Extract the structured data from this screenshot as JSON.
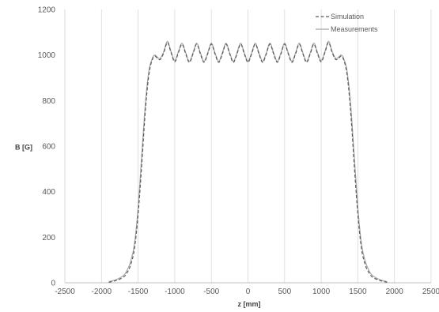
{
  "chart_data": {
    "type": "line",
    "title": "",
    "xlabel": "z [mm]",
    "ylabel": "B [G]",
    "xlim": [
      -2500,
      2500
    ],
    "ylim": [
      0,
      1200
    ],
    "xticks": [
      -2500,
      -2000,
      -1500,
      -1000,
      -500,
      0,
      500,
      1000,
      1500,
      2000,
      2500
    ],
    "yticks": [
      0,
      200,
      400,
      600,
      800,
      1000,
      1200
    ],
    "xtick_labels": [
      "-2500",
      "-2000",
      "-1500",
      "-1000",
      "-500",
      "0",
      "500",
      "1000",
      "1500",
      "2000",
      "2500"
    ],
    "ytick_labels": [
      "0",
      "200",
      "400",
      "600",
      "800",
      "1000",
      "1200"
    ],
    "grid": "vertical",
    "legend_position": "top-right",
    "series": [
      {
        "name": "Simulation",
        "style": "dashed",
        "color": "#595959",
        "x": [
          -1900,
          -1800,
          -1700,
          -1650,
          -1600,
          -1550,
          -1500,
          -1450,
          -1400,
          -1350,
          -1300,
          -1270,
          -1250,
          -1200,
          -1150,
          -1100,
          -1050,
          -1000,
          -950,
          -900,
          -850,
          -800,
          -750,
          -700,
          -650,
          -600,
          -550,
          -500,
          -450,
          -400,
          -350,
          -300,
          -250,
          -200,
          -150,
          -100,
          -50,
          0,
          50,
          100,
          150,
          200,
          250,
          300,
          350,
          400,
          450,
          500,
          550,
          600,
          650,
          700,
          750,
          800,
          850,
          900,
          950,
          1000,
          1050,
          1100,
          1150,
          1200,
          1250,
          1270,
          1300,
          1350,
          1400,
          1450,
          1500,
          1550,
          1600,
          1650,
          1700,
          1800,
          1900
        ],
        "y": [
          2,
          10,
          25,
          45,
          80,
          150,
          300,
          520,
          760,
          920,
          985,
          995,
          990,
          980,
          1010,
          1055,
          1010,
          970,
          1010,
          1048,
          1005,
          968,
          1005,
          1048,
          1005,
          968,
          1005,
          1048,
          1005,
          968,
          1005,
          1048,
          1005,
          968,
          1005,
          1048,
          1005,
          968,
          1005,
          1048,
          1005,
          968,
          1005,
          1048,
          1005,
          968,
          1005,
          1048,
          1005,
          968,
          1005,
          1048,
          1005,
          968,
          1005,
          1048,
          1005,
          970,
          1010,
          1055,
          1010,
          980,
          990,
          995,
          985,
          920,
          760,
          520,
          300,
          150,
          80,
          45,
          25,
          10,
          2
        ]
      },
      {
        "name": "Measurements",
        "style": "solid",
        "color": "#a6a6a6",
        "x": [
          -1900,
          -1800,
          -1700,
          -1650,
          -1600,
          -1550,
          -1500,
          -1450,
          -1400,
          -1350,
          -1300,
          -1270,
          -1250,
          -1200,
          -1150,
          -1100,
          -1050,
          -1000,
          -950,
          -900,
          -850,
          -800,
          -750,
          -700,
          -650,
          -600,
          -550,
          -500,
          -450,
          -400,
          -350,
          -300,
          -250,
          -200,
          -150,
          -100,
          -50,
          0,
          50,
          100,
          150,
          200,
          250,
          300,
          350,
          400,
          450,
          500,
          550,
          600,
          650,
          700,
          750,
          800,
          850,
          900,
          950,
          1000,
          1050,
          1100,
          1150,
          1200,
          1250,
          1270,
          1300,
          1350,
          1400,
          1450,
          1500,
          1550,
          1600,
          1650,
          1700,
          1800,
          1900
        ],
        "y": [
          5,
          14,
          32,
          55,
          95,
          170,
          330,
          560,
          790,
          935,
          990,
          1000,
          995,
          985,
          1015,
          1060,
          1015,
          975,
          1015,
          1052,
          1010,
          972,
          1010,
          1052,
          1010,
          972,
          1010,
          1052,
          1010,
          972,
          1010,
          1052,
          1010,
          972,
          1010,
          1052,
          1010,
          972,
          1010,
          1052,
          1010,
          972,
          1010,
          1052,
          1010,
          972,
          1010,
          1052,
          1010,
          972,
          1010,
          1052,
          1010,
          972,
          1010,
          1052,
          1010,
          975,
          1015,
          1060,
          1015,
          985,
          995,
          1000,
          990,
          935,
          790,
          560,
          330,
          170,
          95,
          55,
          32,
          14,
          5
        ]
      }
    ]
  }
}
